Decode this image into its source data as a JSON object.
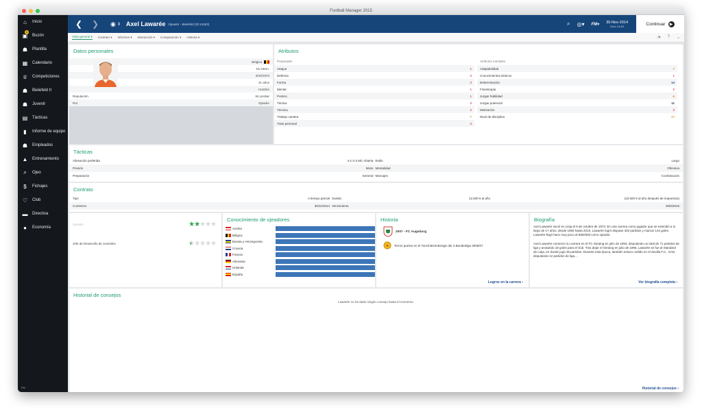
{
  "window": {
    "title": "Football Manager 2015"
  },
  "sidebar": {
    "items": [
      {
        "label": "Inicio",
        "icon": "home-icon",
        "glyph": "⌂"
      },
      {
        "label": "Buzón",
        "icon": "inbox-icon",
        "glyph": "▣",
        "badge": "8"
      },
      {
        "label": "Plantilla",
        "icon": "squad-icon",
        "glyph": "☗"
      },
      {
        "label": "Calendario",
        "icon": "calendar-icon",
        "glyph": "▦"
      },
      {
        "label": "Competiciones",
        "icon": "trophy-icon",
        "glyph": "♕"
      },
      {
        "label": "Bielefeld II",
        "icon": "team-icon",
        "glyph": "☗"
      },
      {
        "label": "Juvenil",
        "icon": "youth-icon",
        "glyph": "☗"
      },
      {
        "label": "Tácticas",
        "icon": "tactics-icon",
        "glyph": "▤"
      },
      {
        "label": "Informe de equipo",
        "icon": "report-icon",
        "glyph": "▮"
      },
      {
        "label": "Empleados",
        "icon": "staff-icon",
        "glyph": "☗"
      },
      {
        "label": "Entrenamiento",
        "icon": "training-icon",
        "glyph": "▲"
      },
      {
        "label": "Ojeo",
        "icon": "scouting-icon",
        "glyph": "⌕"
      },
      {
        "label": "Fichajes",
        "icon": "transfers-icon",
        "glyph": "$"
      },
      {
        "label": "Club",
        "icon": "club-icon",
        "glyph": "♡"
      },
      {
        "label": "Directiva",
        "icon": "board-icon",
        "glyph": "▬"
      },
      {
        "label": "Economía",
        "icon": "finance-icon",
        "glyph": "●"
      }
    ],
    "footer": "FM"
  },
  "header": {
    "name": "Axel Lawarée",
    "role": "Ojeador - Bielefeld (ID:13493)",
    "fm_badge": "FM",
    "date": "30-Nov-2014",
    "day": "Dom 14:45",
    "continue": "Continuar"
  },
  "tabs": [
    {
      "label": "Vista general",
      "active": true
    },
    {
      "label": "Contrato"
    },
    {
      "label": "Informes"
    },
    {
      "label": "Interacción"
    },
    {
      "label": "Comparación"
    },
    {
      "label": "Historia"
    }
  ],
  "personal": {
    "title": "Datos personales",
    "rows": [
      {
        "k": "",
        "v": "Bélgica"
      },
      {
        "k": "",
        "v": "No intern."
      },
      {
        "k": "",
        "v": "9/10/1973"
      },
      {
        "k": "",
        "v": "41 años"
      },
      {
        "k": "",
        "v": "Hombre"
      },
      {
        "k": "Reputación",
        "v": "Sin probar"
      },
      {
        "k": "Rol",
        "v": "Ojeador"
      }
    ]
  },
  "attributes": {
    "title": "Atributos",
    "coach_head": "Preparador",
    "mental_head": "Atributos mentales",
    "coach": [
      {
        "k": "Ataque",
        "v": "1",
        "c": "#e05050"
      },
      {
        "k": "Defensa",
        "v": "3",
        "c": "#e05050"
      },
      {
        "k": "Forma",
        "v": "3",
        "c": "#e05050"
      },
      {
        "k": "Mental",
        "v": "1",
        "c": "#e05050"
      },
      {
        "k": "Portero",
        "v": "1",
        "c": "#e05050"
      },
      {
        "k": "Táctica",
        "v": "3",
        "c": "#e05050"
      },
      {
        "k": "Técnica",
        "v": "2",
        "c": "#e05050"
      },
      {
        "k": "Trabajo cantera",
        "v": "7",
        "c": "#e08a3a"
      },
      {
        "k": "Trato personal",
        "v": "3",
        "c": "#e05050"
      }
    ],
    "mental": [
      {
        "k": "Adaptabilidad",
        "v": "7",
        "c": "#e08a3a"
      },
      {
        "k": "Conocimientos tácticos",
        "v": "1",
        "c": "#e05050"
      },
      {
        "k": "Determinación",
        "v": "14",
        "c": "#1f4f8f"
      },
      {
        "k": "Fisioterapia",
        "v": "2",
        "c": "#e05050"
      },
      {
        "k": "Juzgar habilidad",
        "v": "6",
        "c": "#e08a3a"
      },
      {
        "k": "Juzgar potencial",
        "v": "11",
        "c": "#333333"
      },
      {
        "k": "Motivación",
        "v": "3",
        "c": "#e05050"
      },
      {
        "k": "Nivel de disciplina",
        "v": "17",
        "c": "#e0a020"
      }
    ]
  },
  "tactics": {
    "title": "Tácticas",
    "rows": [
      {
        "k1": "Alineación preferida",
        "v1": "4-1-2-3 MC Abierta",
        "k2": "Estilo",
        "v2": "Largo"
      },
      {
        "k1": "Presión",
        "v1": "Mixto",
        "k2": "Mentalidad",
        "v2": "Ofensiva"
      },
      {
        "k1": "Preparación",
        "v1": "General",
        "k2": "Marcajes",
        "v2": "Combinación"
      }
    ]
  },
  "contract": {
    "title": "Contrato",
    "rows": [
      {
        "k1": "Tipo",
        "v1": "A tiempo parcial",
        "k2": "Sueldo",
        "v2": "12.500 € al año",
        "v3": "(10.500 € al año después de impuestos)"
      },
      {
        "k1": "Comienzo",
        "v1": "30/11/2014",
        "k2": "Vencimiento",
        "v2": "",
        "v3": "30/6/2016"
      }
    ]
  },
  "roles": {
    "rows": [
      {
        "label": "Ojeador",
        "stars": 2,
        "total": 5
      },
      {
        "label": "Jefe de Desarrollo de Juveniles",
        "stars": 0.5,
        "total": 5
      }
    ]
  },
  "scouting": {
    "title": "Conocimiento de ojeadores",
    "rows": [
      {
        "name": "Austria",
        "fill": 1.0,
        "flag": [
          "#d22",
          "#fff",
          "#d22"
        ]
      },
      {
        "name": "Bélgica",
        "fill": 1.0,
        "flag": [
          "#111",
          "#f2d400",
          "#d22"
        ]
      },
      {
        "name": "Bosnia y Herzegovina",
        "fill": 1.0,
        "flag": [
          "#1d3c8f",
          "#f2d400",
          "#1d3c8f"
        ]
      },
      {
        "name": "Croacia",
        "fill": 1.0,
        "flag": [
          "#d22",
          "#fff",
          "#1d3c8f"
        ]
      },
      {
        "name": "Francia",
        "fill": 1.0,
        "flag": [
          "#1d3c8f",
          "#fff",
          "#d22"
        ]
      },
      {
        "name": "Alemania",
        "fill": 1.0,
        "flag": [
          "#111",
          "#d22",
          "#f2d400"
        ]
      },
      {
        "name": "Holanda",
        "fill": 1.0,
        "flag": [
          "#d22",
          "#fff",
          "#1d3c8f"
        ]
      },
      {
        "name": "España",
        "fill": 1.0,
        "flag": [
          "#d22",
          "#f2d400",
          "#d22"
        ]
      }
    ]
  },
  "history": {
    "title": "Historia",
    "entry1": "2007 - FC Augsburg",
    "entry2": "Tercer puesto en el Torschützenkönige der 2.Bundesliga 2006/07",
    "link": "Logros en la carrera"
  },
  "bio": {
    "title": "Biografía",
    "p1": "Axel Lawarée nació en Lieja el 9 de octubre de 1973. En una carrera como jugador que se extendió a lo largo de 17 años, desde 1993 hasta 2010, Lawarée logró disputar 402 partidos y marcar 144 goles. Lawarée llegó hace muy poco al Bielefeld como ojeador.",
    "p2": "Axel Lawarée comenzó su carrera en el FC Seraing en julio de 1993, disputando un total de 71 partidos de liga y anotando 18 goles para el club. Tras dejar el Seraing en julio de 1996, Lawarée se fue al Standard de Lieja, en donde jugó 35 partidos. Durante esta época, también estuvo cedido en el Sevilla F.C., SAD, disputando 12 partidos de liga....",
    "link": "Ver biografía completa"
  },
  "advice": {
    "title": "Historial de consejos",
    "empty": "Lawarée no ha dado ningún consejo hasta el momento.",
    "link": "Historial de consejos"
  },
  "colors": {
    "accent": "#1a9b6b",
    "header": "#16457a",
    "sidebar": "#14181d",
    "bar": "#3d76b8"
  }
}
